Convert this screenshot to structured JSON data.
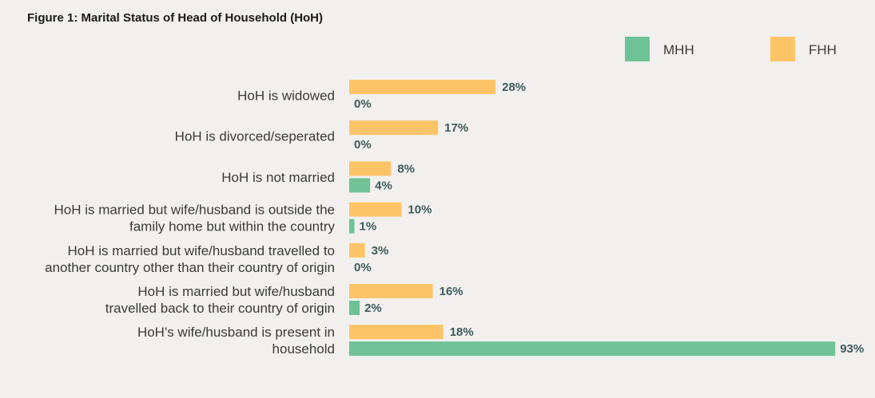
{
  "chart_data": {
    "type": "bar",
    "orientation": "horizontal",
    "title": "Figure 1: Marital Status of Head of Household (HoH)",
    "categories": [
      [
        "HoH is widowed"
      ],
      [
        "HoH is divorced/seperated"
      ],
      [
        "HoH is not married"
      ],
      [
        "HoH is married but wife/husband is outside the",
        "family home but within the country"
      ],
      [
        "HoH is married but wife/husband travelled to",
        "another country other than their country of origin"
      ],
      [
        "HoH is married but wife/husband",
        "travelled back to their country of origin"
      ],
      [
        "HoH's wife/husband is present in",
        "household"
      ]
    ],
    "series": [
      {
        "name": "FHH",
        "color": "#fdc467",
        "values": [
          28,
          17,
          8,
          10,
          3,
          16,
          18
        ],
        "labels": [
          "28%",
          "17%",
          "8%",
          "10%",
          "3%",
          "16%",
          "18%"
        ]
      },
      {
        "name": "MHH",
        "color": "#6fc296",
        "values": [
          0,
          0,
          4,
          1,
          0,
          2,
          93
        ],
        "labels": [
          "0%",
          "0%",
          "4%",
          "1%",
          "0%",
          "2%",
          "93%"
        ]
      }
    ],
    "legend": {
      "position": "top-right",
      "items": [
        {
          "name": "MHH",
          "color": "#6fc296"
        },
        {
          "name": "FHH",
          "color": "#fdc467"
        }
      ]
    },
    "xlim": [
      0,
      100
    ],
    "grid": false,
    "value_unit": "%"
  }
}
